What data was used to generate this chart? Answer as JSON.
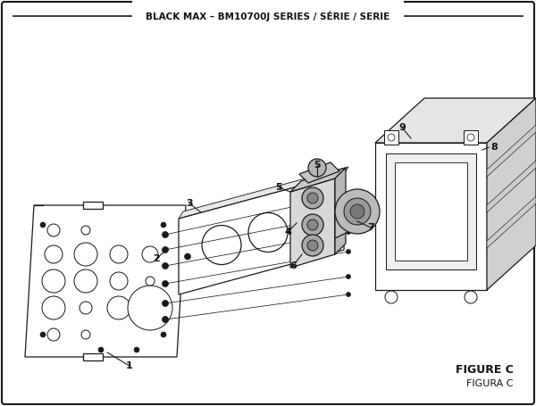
{
  "title": "BLACK MAX – BM10700J SERIES / SÉRIE / SERIE",
  "figure_label": "FIGURE C",
  "figura_label": "FIGURA C",
  "bg": "#ffffff",
  "lc": "#1a1a1a",
  "fig_width": 6.0,
  "fig_height": 4.55
}
